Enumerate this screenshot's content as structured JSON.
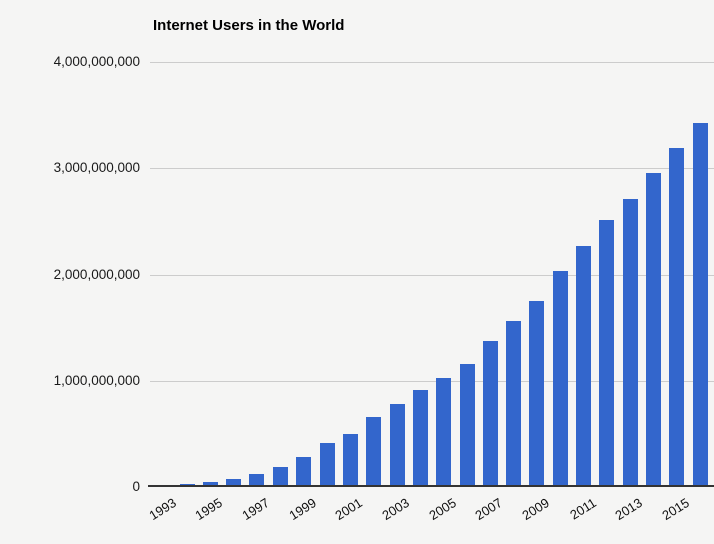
{
  "title": "Internet Users in the World",
  "chart_data": {
    "type": "bar",
    "title": "Internet Users in the World",
    "categories": [
      "1993",
      "1994",
      "1995",
      "1996",
      "1997",
      "1998",
      "1999",
      "2000",
      "2001",
      "2002",
      "2003",
      "2004",
      "2005",
      "2006",
      "2007",
      "2008",
      "2009",
      "2010",
      "2011",
      "2012",
      "2013",
      "2014",
      "2015",
      "2016"
    ],
    "values": [
      14161570,
      25454590,
      44838900,
      77433860,
      120758310,
      188023930,
      280866670,
      413425190,
      500609240,
      662663600,
      778555680,
      910060180,
      1030101289,
      1157500065,
      1373226988,
      1562067594,
      1752333178,
      2034259368,
      2272463038,
      2511615523,
      2712239573,
      2956385569,
      3185996155,
      3424971237
    ],
    "xlabel": "",
    "ylabel": "",
    "ylim": [
      0,
      4000000000
    ],
    "x_tick_labels": [
      "1993",
      "1995",
      "1997",
      "1999",
      "2001",
      "2003",
      "2005",
      "2007",
      "2009",
      "2011",
      "2013",
      "2015"
    ],
    "y_ticks": [
      {
        "value": 0,
        "label": "0"
      },
      {
        "value": 1000000000,
        "label": "1,000,000,000"
      },
      {
        "value": 2000000000,
        "label": "2,000,000,000"
      },
      {
        "value": 3000000000,
        "label": "3,000,000,000"
      },
      {
        "value": 4000000000,
        "label": "4,000,000,000"
      }
    ],
    "grid": true,
    "legend_position": "none",
    "bar_color": "#3366cc",
    "background_color": "#f5f5f4",
    "gridline_color": "#cccccc",
    "axis_line_color": "#333333"
  }
}
